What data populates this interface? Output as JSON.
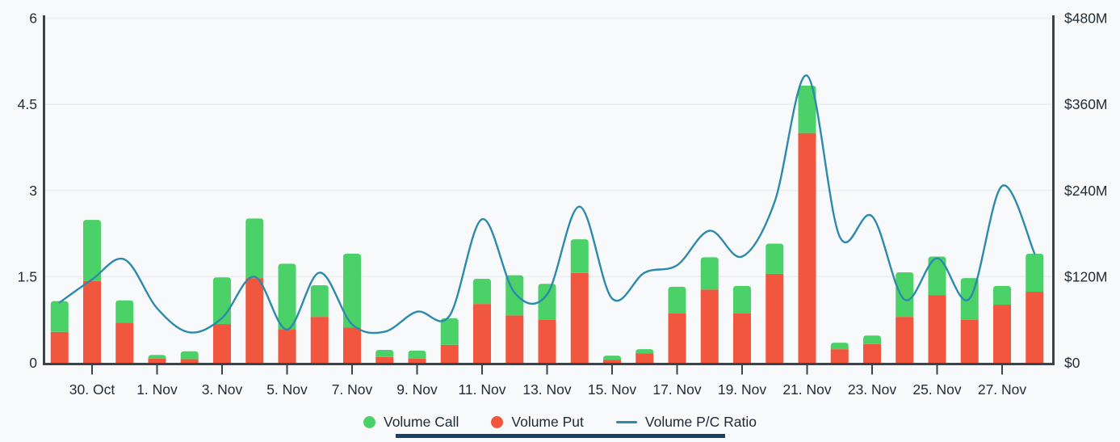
{
  "chart_data": {
    "type": "combo-stacked-bar-line",
    "categories": [
      "29. Oct",
      "30. Oct",
      "31. Oct",
      "1. Nov",
      "2. Nov",
      "3. Nov",
      "4. Nov",
      "5. Nov",
      "6. Nov",
      "7. Nov",
      "8. Nov",
      "9. Nov",
      "10. Nov",
      "11. Nov",
      "12. Nov",
      "13. Nov",
      "14. Nov",
      "15. Nov",
      "16. Nov",
      "17. Nov",
      "18. Nov",
      "19. Nov",
      "20. Nov",
      "21. Nov",
      "22. Nov",
      "23. Nov",
      "24. Nov",
      "25. Nov",
      "26. Nov",
      "27. Nov",
      "28. Nov"
    ],
    "bar_series": [
      {
        "name": "Volume Put",
        "stack_position": "bottom",
        "color": "#f0573e",
        "axis": "right",
        "unit": "USD millions",
        "values_musd": [
          43,
          114,
          56,
          6,
          5,
          54,
          118,
          47,
          64,
          49,
          8,
          6,
          25,
          82,
          66,
          60,
          125,
          4,
          13,
          69,
          102,
          69,
          124,
          320,
          19,
          26,
          64,
          94,
          60,
          81,
          99
        ]
      },
      {
        "name": "Volume Call",
        "stack_position": "top",
        "color": "#4ad168",
        "axis": "right",
        "unit": "USD millions",
        "values_musd": [
          43,
          85,
          31,
          5,
          11,
          65,
          83,
          91,
          44,
          103,
          10,
          11,
          37,
          35,
          56,
          50,
          47,
          6,
          6,
          37,
          45,
          38,
          42,
          66,
          9,
          12,
          62,
          54,
          58,
          26,
          53
        ]
      }
    ],
    "line_series": {
      "name": "Volume P/C Ratio",
      "color": "#2d8aaa",
      "axis": "left",
      "values": [
        1.05,
        1.45,
        1.8,
        0.95,
        0.53,
        0.78,
        1.5,
        0.58,
        1.57,
        0.67,
        0.54,
        0.89,
        0.82,
        2.5,
        1.22,
        1.19,
        2.72,
        1.12,
        1.57,
        1.7,
        2.3,
        1.85,
        2.8,
        5,
        2.2,
        2.55,
        1.1,
        1.82,
        1.12,
        3.08,
        1.9
      ]
    },
    "x_axis": {
      "tick_labels": [
        "30. Oct",
        "1. Nov",
        "3. Nov",
        "5. Nov",
        "7. Nov",
        "9. Nov",
        "11. Nov",
        "13. Nov",
        "15. Nov",
        "17. Nov",
        "19. Nov",
        "21. Nov",
        "23. Nov",
        "25. Nov",
        "27. Nov"
      ],
      "tick_every_n_days": 2,
      "first_tick_category_index": 1
    },
    "y_axis_left": {
      "tick_labels": [
        "0",
        "1.5",
        "3",
        "4.5",
        "6"
      ],
      "min": 0,
      "max": 6
    },
    "y_axis_right": {
      "tick_labels": [
        "$0",
        "$120M",
        "$240M",
        "$360M",
        "$480M"
      ],
      "min_musd": 0,
      "max_musd": 480
    },
    "grid": "horizontal",
    "legend_position": "bottom"
  },
  "legend": {
    "items": [
      {
        "label": "Volume Call",
        "marker": "circle",
        "color": "#4ad168"
      },
      {
        "label": "Volume Put",
        "marker": "circle",
        "color": "#f0573e"
      },
      {
        "label": "Volume P/C Ratio",
        "marker": "line",
        "color": "#2d8aaa"
      }
    ]
  },
  "style_colors": {
    "background": "#f8f9fb",
    "gridline": "#ebedf1",
    "axis_frame": "#3a444f",
    "axis_text": "#232d38"
  }
}
